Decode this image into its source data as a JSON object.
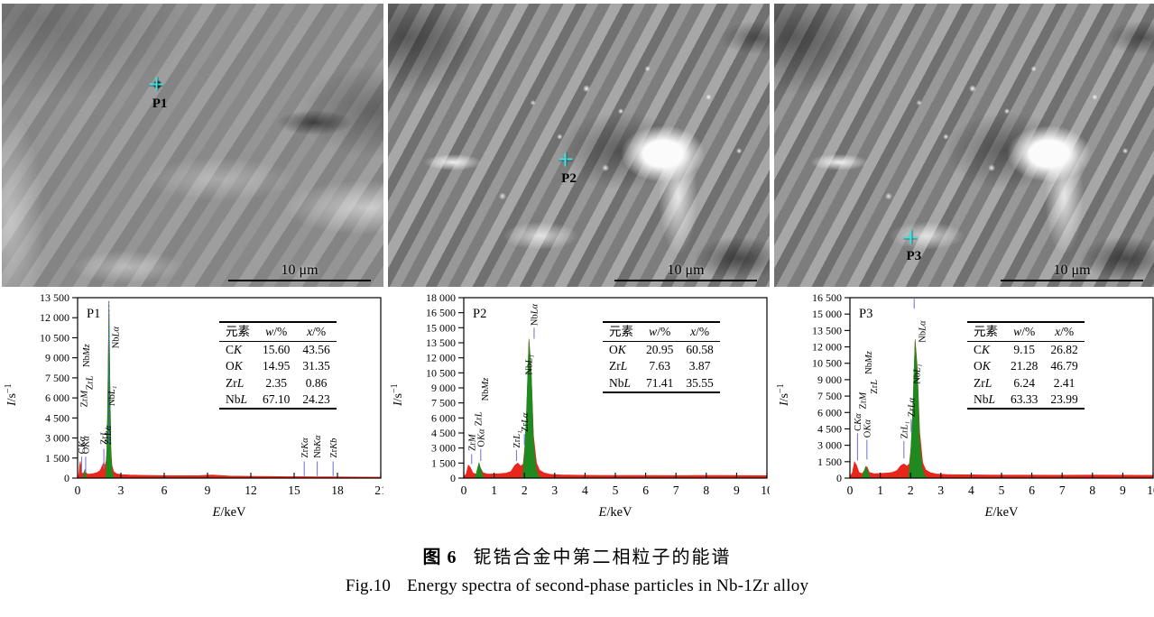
{
  "figure": {
    "caption_zh_label": "图 6",
    "caption_zh_text": "铌锆合金中第二相粒子的能谱",
    "caption_en_label": "Fig.10",
    "caption_en_text": "Energy spectra of second-phase particles in Nb-1Zr alloy"
  },
  "colors": {
    "spectrum_red": "#e8261c",
    "spectrum_green": "#1f8a1f",
    "annotation_blue": "#7a7ad8",
    "peakline_blue": "#4d5bd2",
    "crosshair_cyan": "#3fe3e3",
    "axis_black": "#000000"
  },
  "panels": [
    {
      "id": "P1",
      "sem": {
        "point_label": "P1",
        "scale_label": "10 μm",
        "marker": {
          "left_pct": 40.5,
          "top_pct": 28.5
        }
      },
      "table": {
        "headers": [
          "元素",
          "w/%",
          "x/%"
        ],
        "rows": [
          [
            "CK",
            "15.60",
            "43.56"
          ],
          [
            "OK",
            "14.95",
            "31.35"
          ],
          [
            "ZrL",
            "2.35",
            "0.86"
          ],
          [
            "NbL",
            "67.10",
            "24.23"
          ]
        ]
      },
      "chart_data": {
        "type": "area",
        "title": "P1",
        "xlabel": "E/keV",
        "ylabel": "I/s⁻¹",
        "xlim": [
          0,
          21
        ],
        "ylim": [
          0,
          13500
        ],
        "xticks": [
          0,
          3,
          6,
          9,
          12,
          15,
          18,
          21
        ],
        "yticks": [
          0,
          1500,
          3000,
          4500,
          6000,
          7500,
          9000,
          10500,
          12000,
          13500
        ],
        "red_series": [
          [
            0,
            60
          ],
          [
            0.08,
            200
          ],
          [
            0.14,
            900
          ],
          [
            0.18,
            1250
          ],
          [
            0.24,
            900
          ],
          [
            0.3,
            420
          ],
          [
            0.38,
            300
          ],
          [
            0.46,
            480
          ],
          [
            0.52,
            640
          ],
          [
            0.58,
            420
          ],
          [
            0.68,
            300
          ],
          [
            0.85,
            300
          ],
          [
            1.1,
            340
          ],
          [
            1.35,
            420
          ],
          [
            1.55,
            560
          ],
          [
            1.7,
            900
          ],
          [
            1.8,
            1150
          ],
          [
            1.9,
            950
          ],
          [
            1.98,
            1300
          ],
          [
            2.04,
            2400
          ],
          [
            2.1,
            6500
          ],
          [
            2.17,
            13200
          ],
          [
            2.24,
            6800
          ],
          [
            2.3,
            2300
          ],
          [
            2.38,
            950
          ],
          [
            2.5,
            480
          ],
          [
            2.7,
            330
          ],
          [
            3,
            270
          ],
          [
            3.6,
            230
          ],
          [
            4.5,
            210
          ],
          [
            5.5,
            190
          ],
          [
            6.5,
            180
          ],
          [
            7.5,
            180
          ],
          [
            8.5,
            190
          ],
          [
            9.3,
            230
          ],
          [
            9.8,
            200
          ],
          [
            10.5,
            160
          ],
          [
            11.5,
            140
          ],
          [
            12.5,
            130
          ],
          [
            13.5,
            120
          ],
          [
            14.5,
            110
          ],
          [
            15.5,
            110
          ],
          [
            16.5,
            100
          ],
          [
            17.5,
            100
          ],
          [
            18.5,
            90
          ],
          [
            19.5,
            80
          ],
          [
            21,
            70
          ]
        ],
        "green_series": [
          [
            [
              0.4,
              60
            ],
            [
              0.5,
              640
            ],
            [
              0.62,
              80
            ]
          ],
          [
            [
              1.96,
              200
            ],
            [
              2.02,
              1700
            ],
            [
              2.08,
              5200
            ],
            [
              2.17,
              13150
            ],
            [
              2.25,
              6300
            ],
            [
              2.32,
              1700
            ],
            [
              2.4,
              420
            ],
            [
              2.5,
              80
            ]
          ]
        ],
        "annotations": [
          {
            "text": "CKα",
            "x": 0.28,
            "tick": [
              400,
              1600
            ],
            "label_y": 1800
          },
          {
            "text": "ZrM",
            "x": 0.42,
            "label_y": 5300
          },
          {
            "text": "OKα",
            "x": 0.56,
            "tick": [
              400,
              1600
            ],
            "label_y": 1800
          },
          {
            "text": "NbMz",
            "x": 0.6,
            "label_y": 8300
          },
          {
            "text": "ZrL",
            "x": 0.8,
            "label_y": 6600
          },
          {
            "text": "ZrL₁",
            "x": 1.82,
            "tick": [
              700,
              2200
            ],
            "label_y": 2500
          },
          {
            "text": "ZrLα",
            "x": 2.08,
            "label_y": 2500
          },
          {
            "text": "NbL₁",
            "x": 2.34,
            "label_y": 5400
          },
          {
            "text": "NbLα",
            "x": 2.62,
            "label_y": 9700
          },
          {
            "text": "",
            "x": 2.17,
            "tick": [
              2600,
              13250
            ],
            "dash": true
          },
          {
            "text": "ZrKα",
            "x": 15.7,
            "tick": [
              150,
              1250
            ],
            "label_y": 1500
          },
          {
            "text": "NbKα",
            "x": 16.6,
            "tick": [
              150,
              1250
            ],
            "label_y": 1500
          },
          {
            "text": "ZrKb",
            "x": 17.7,
            "tick": [
              150,
              1250
            ],
            "label_y": 1500
          }
        ]
      }
    },
    {
      "id": "P2",
      "sem": {
        "point_label": "P2",
        "scale_label": "10 μm",
        "marker": {
          "left_pct": 46.5,
          "top_pct": 55.0
        }
      },
      "table": {
        "headers": [
          "元素",
          "w/%",
          "x/%"
        ],
        "rows": [
          [
            "OK",
            "20.95",
            "60.58"
          ],
          [
            "ZrL",
            "7.63",
            "3.87"
          ],
          [
            "NbL",
            "71.41",
            "35.55"
          ]
        ]
      },
      "chart_data": {
        "type": "area",
        "title": "P2",
        "xlabel": "E/keV",
        "ylabel": "I/s⁻¹",
        "xlim": [
          0,
          10
        ],
        "ylim": [
          0,
          18000
        ],
        "xticks": [
          0,
          1,
          2,
          3,
          4,
          5,
          6,
          7,
          8,
          9,
          10
        ],
        "yticks": [
          0,
          1500,
          3000,
          4500,
          6000,
          7500,
          9000,
          10500,
          12000,
          13500,
          15000,
          16500,
          18000
        ],
        "red_series": [
          [
            0,
            120
          ],
          [
            0.08,
            420
          ],
          [
            0.15,
            1300
          ],
          [
            0.22,
            1050
          ],
          [
            0.3,
            520
          ],
          [
            0.4,
            400
          ],
          [
            0.5,
            700
          ],
          [
            0.56,
            950
          ],
          [
            0.64,
            520
          ],
          [
            0.8,
            400
          ],
          [
            1.0,
            420
          ],
          [
            1.2,
            450
          ],
          [
            1.4,
            500
          ],
          [
            1.55,
            650
          ],
          [
            1.68,
            1250
          ],
          [
            1.78,
            1500
          ],
          [
            1.88,
            1200
          ],
          [
            1.96,
            1400
          ],
          [
            2.02,
            3200
          ],
          [
            2.08,
            7000
          ],
          [
            2.15,
            13900
          ],
          [
            2.22,
            11000
          ],
          [
            2.3,
            4200
          ],
          [
            2.4,
            1500
          ],
          [
            2.5,
            800
          ],
          [
            2.65,
            520
          ],
          [
            2.85,
            380
          ],
          [
            3.2,
            320
          ],
          [
            3.8,
            290
          ],
          [
            4.5,
            270
          ],
          [
            5.2,
            260
          ],
          [
            6,
            260
          ],
          [
            6.8,
            250
          ],
          [
            7.6,
            260
          ],
          [
            8.4,
            260
          ],
          [
            9.2,
            250
          ],
          [
            10,
            240
          ]
        ],
        "green_series": [
          [
            [
              0.38,
              80
            ],
            [
              0.5,
              1550
            ],
            [
              0.64,
              120
            ]
          ],
          [
            [
              1.94,
              250
            ],
            [
              2.0,
              2400
            ],
            [
              2.06,
              6000
            ],
            [
              2.15,
              13750
            ],
            [
              2.23,
              10200
            ],
            [
              2.3,
              3600
            ],
            [
              2.38,
              1100
            ],
            [
              2.46,
              260
            ],
            [
              2.55,
              60
            ]
          ]
        ],
        "annotations": [
          {
            "text": "ZrM",
            "x": 0.26,
            "tick": [
              1400,
              2400
            ],
            "label_y": 2700
          },
          {
            "text": "ZrL",
            "x": 0.48,
            "label_y": 5200
          },
          {
            "text": "OKα",
            "x": 0.56,
            "tick": [
              1700,
              2900
            ],
            "label_y": 3100
          },
          {
            "text": "NbMz",
            "x": 0.7,
            "label_y": 7700
          },
          {
            "text": "ZrL₁",
            "x": 1.74,
            "tick": [
              1700,
              2800
            ],
            "label_y": 3000
          },
          {
            "text": "ZrLα",
            "x": 2.0,
            "tick": [
              3300,
              4400
            ],
            "label_y": 4600
          },
          {
            "text": "NbL₁",
            "x": 2.14,
            "label_y": 10300
          },
          {
            "text": "NbLα",
            "x": 2.32,
            "tick": [
              13900,
              15000
            ],
            "label_y": 15200
          }
        ]
      }
    },
    {
      "id": "P3",
      "sem": {
        "point_label": "P3",
        "scale_label": "10 μm",
        "marker": {
          "left_pct": 35.7,
          "top_pct": 82.5
        }
      },
      "table": {
        "headers": [
          "元素",
          "w/%",
          "x/%"
        ],
        "rows": [
          [
            "CK",
            "9.15",
            "26.82"
          ],
          [
            "OK",
            "21.28",
            "46.79"
          ],
          [
            "ZrL",
            "6.24",
            "2.41"
          ],
          [
            "NbL",
            "63.33",
            "23.99"
          ]
        ]
      },
      "chart_data": {
        "type": "area",
        "title": "P3",
        "xlabel": "E/keV",
        "ylabel": "I/s⁻¹",
        "xlim": [
          0,
          10
        ],
        "ylim": [
          0,
          16500
        ],
        "xticks": [
          0,
          1,
          2,
          3,
          4,
          5,
          6,
          7,
          8,
          9,
          10
        ],
        "yticks": [
          0,
          1500,
          3000,
          4500,
          6000,
          7500,
          9000,
          10500,
          12000,
          13500,
          15000,
          16500
        ],
        "red_series": [
          [
            0,
            120
          ],
          [
            0.08,
            500
          ],
          [
            0.15,
            1500
          ],
          [
            0.22,
            1150
          ],
          [
            0.3,
            520
          ],
          [
            0.4,
            400
          ],
          [
            0.5,
            780
          ],
          [
            0.56,
            1050
          ],
          [
            0.64,
            520
          ],
          [
            0.8,
            400
          ],
          [
            1.0,
            430
          ],
          [
            1.2,
            460
          ],
          [
            1.4,
            520
          ],
          [
            1.55,
            700
          ],
          [
            1.68,
            1150
          ],
          [
            1.78,
            1300
          ],
          [
            1.88,
            1100
          ],
          [
            1.96,
            1300
          ],
          [
            2.02,
            2900
          ],
          [
            2.08,
            6200
          ],
          [
            2.15,
            12700
          ],
          [
            2.22,
            10200
          ],
          [
            2.3,
            4200
          ],
          [
            2.4,
            1400
          ],
          [
            2.5,
            750
          ],
          [
            2.65,
            500
          ],
          [
            2.85,
            380
          ],
          [
            3.2,
            330
          ],
          [
            3.8,
            300
          ],
          [
            4.5,
            280
          ],
          [
            5.2,
            270
          ],
          [
            6,
            270
          ],
          [
            6.8,
            260
          ],
          [
            7.6,
            270
          ],
          [
            8.4,
            270
          ],
          [
            9.2,
            260
          ],
          [
            10,
            250
          ]
        ],
        "green_series": [
          [
            [
              0.4,
              80
            ],
            [
              0.52,
              1080
            ],
            [
              0.66,
              120
            ]
          ],
          [
            [
              1.94,
              240
            ],
            [
              2.0,
              2200
            ],
            [
              2.06,
              5400
            ],
            [
              2.15,
              12600
            ],
            [
              2.23,
              9400
            ],
            [
              2.3,
              3400
            ],
            [
              2.38,
              1000
            ],
            [
              2.46,
              240
            ],
            [
              2.56,
              60
            ]
          ]
        ],
        "annotations": [
          {
            "text": "CKα",
            "x": 0.25,
            "tick": [
              1600,
              4100
            ],
            "label_y": 4300
          },
          {
            "text": "ZrM",
            "x": 0.42,
            "label_y": 6300
          },
          {
            "text": "OKα",
            "x": 0.56,
            "tick": [
              1700,
              3500
            ],
            "label_y": 3700
          },
          {
            "text": "NbMz",
            "x": 0.6,
            "label_y": 9500
          },
          {
            "text": "ZrL",
            "x": 0.78,
            "label_y": 7700
          },
          {
            "text": "ZrL₁",
            "x": 1.78,
            "tick": [
              1800,
              3400
            ],
            "label_y": 3600
          },
          {
            "text": "ZrLα",
            "x": 2.02,
            "tick": [
              4200,
              5400
            ],
            "label_y": 5600
          },
          {
            "text": "NbL₁",
            "x": 2.2,
            "label_y": 8600
          },
          {
            "text": "NbLα",
            "x": 2.38,
            "label_y": 12400
          },
          {
            "text": "",
            "x": 2.12,
            "tick": [
              15500,
              16400
            ]
          }
        ]
      }
    }
  ]
}
